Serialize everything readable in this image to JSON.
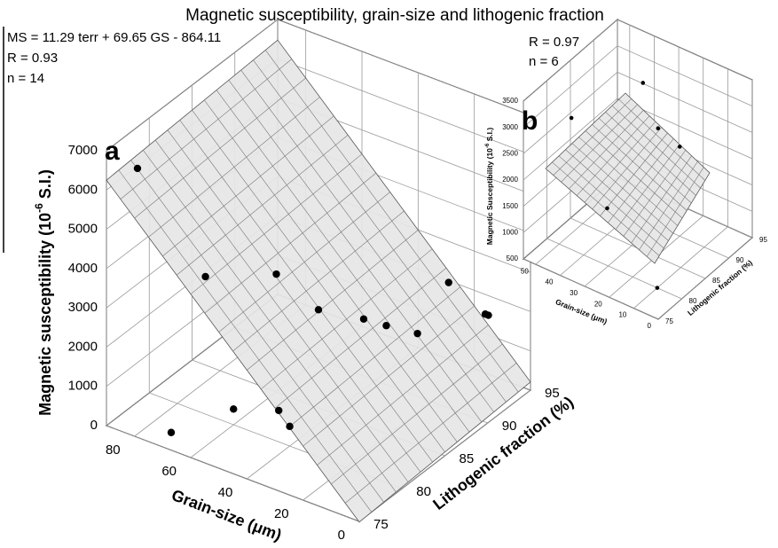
{
  "title": "Magnetic susceptibility, grain-size and lithogenic fraction",
  "chart_data": [
    {
      "type": "scatter3d",
      "panel_label": "a",
      "equation": "MS = 11.29 terr + 69.65 GS - 864.11",
      "r_text": "R = 0.93",
      "n_text": "n = 14",
      "fit": {
        "gs": 69.65,
        "terr": 11.29,
        "const": -864.11
      },
      "xlabel": "Grain-size (μm)",
      "ylabel": "Lithogenic fraction (%)",
      "zlabel": [
        "Magnetic susceptibility (10",
        "-6",
        " S.I.)"
      ],
      "xlim": [
        0,
        90
      ],
      "xticks": [
        0,
        20,
        40,
        60,
        80
      ],
      "ylim": [
        75,
        95
      ],
      "yticks": [
        75,
        80,
        85,
        90,
        95
      ],
      "zlim": [
        0,
        7000
      ],
      "zticks": [
        0,
        1000,
        2000,
        3000,
        4000,
        5000,
        6000,
        7000
      ],
      "color": "#000000",
      "plane_color": "#e6e6e6",
      "x": [
        82,
        70,
        60,
        45,
        35,
        30,
        20,
        25,
        10,
        15,
        60,
        50,
        40,
        70
      ],
      "y": [
        76,
        80,
        85,
        85,
        87,
        88,
        92,
        90,
        93,
        95,
        80,
        82,
        80,
        76
      ],
      "z": [
        6600,
        3500,
        3000,
        2500,
        2200,
        2000,
        2700,
        1600,
        2000,
        1500,
        400,
        300,
        500,
        200
      ]
    },
    {
      "type": "scatter3d",
      "panel_label": "b",
      "r_text": "R = 0.97",
      "n_text": "n = 6",
      "xlabel": "Grain-size (μm)",
      "ylabel": "Lithogenic fraction (%)",
      "zlabel": [
        "Magnetic Susceptibility (10",
        "-6",
        " S.I.)"
      ],
      "xlim": [
        0,
        55
      ],
      "xticks": [
        0,
        10,
        20,
        30,
        40,
        50
      ],
      "ylim": [
        75,
        95
      ],
      "yticks": [
        75,
        80,
        85,
        90,
        95
      ],
      "zlim": [
        500,
        3500
      ],
      "zticks": [
        500,
        1000,
        1500,
        2000,
        2500,
        3000,
        3500
      ],
      "color": "#000000",
      "plane_color": "#e6e6e6",
      "x": [
        45,
        35,
        20,
        40,
        10,
        25
      ],
      "y": [
        80,
        90,
        90,
        85,
        80,
        88
      ],
      "z": [
        3000,
        3100,
        2200,
        1000,
        500,
        2600
      ]
    }
  ]
}
